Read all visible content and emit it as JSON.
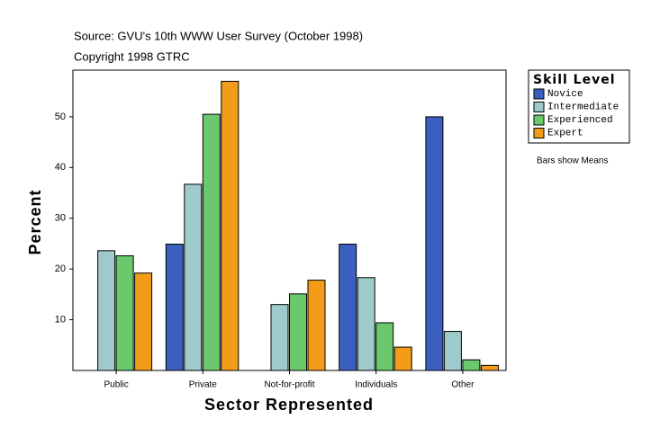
{
  "chart_data": {
    "type": "bar",
    "title": "Source: GVU's 10th WWW User Survey (October 1998)",
    "subtitle": "Copyright 1998 GTRC",
    "x_label": "Sector Represented",
    "y_label": "Percent",
    "legend_title": "Skill Level",
    "note": "Bars show Means",
    "categories": [
      "Public",
      "Private",
      "Not-for-profit",
      "Individuals",
      "Other"
    ],
    "series": [
      {
        "name": "Novice",
        "color": "#3b5fbf",
        "values": [
          null,
          24.9,
          null,
          24.9,
          50.0
        ]
      },
      {
        "name": "Intermediate",
        "color": "#9fcacb",
        "values": [
          23.6,
          36.7,
          13.0,
          18.3,
          7.7
        ]
      },
      {
        "name": "Experienced",
        "color": "#6cc86c",
        "values": [
          22.6,
          50.5,
          15.1,
          9.4,
          2.1
        ]
      },
      {
        "name": "Expert",
        "color": "#f39c1a",
        "values": [
          19.2,
          57.0,
          17.8,
          4.6,
          1.0
        ]
      }
    ],
    "ylim": [
      0,
      59.2
    ],
    "yticks": [
      10,
      20,
      30,
      40,
      50
    ],
    "grid": false,
    "legend": "right"
  }
}
